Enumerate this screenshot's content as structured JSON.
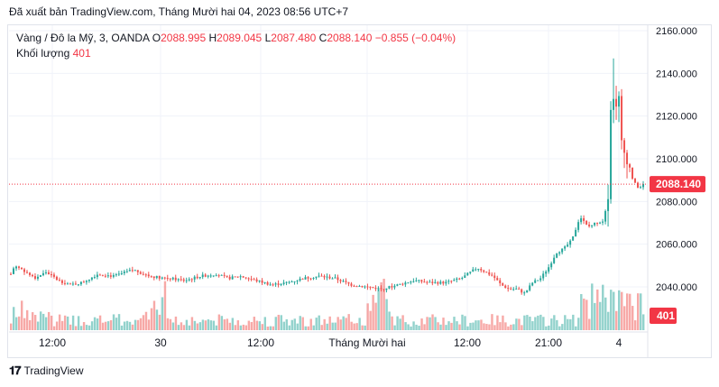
{
  "header": {
    "published_text": "Đã xuất bản TradingView.com, Tháng Mười hai 04, 2023 08:56 UTC+7"
  },
  "legend": {
    "symbol": "Vàng / Đô la Mỹ, 3, OANDA",
    "open_label": "O",
    "open": "2088.995",
    "high_label": "H",
    "high": "2089.045",
    "low_label": "L",
    "low": "2087.480",
    "close_label": "C",
    "close": "2088.140",
    "change": "−0.855 (−0.04%)",
    "volume_label": "Khối lượng",
    "volume_value": "401"
  },
  "footer": {
    "brand": "TradingView"
  },
  "colors": {
    "up": "#26a69a",
    "down": "#ef5350",
    "price_tag": "#f23645",
    "grid": "#f0f3fa"
  },
  "chart_data": {
    "type": "candlestick",
    "symbol": "XAU/USD",
    "timeframe": "3",
    "y_ticks": [
      "2160.000",
      "2140.000",
      "2120.000",
      "2100.000",
      "2080.000",
      "2060.000",
      "2040.000"
    ],
    "y_tick_values": [
      2160,
      2140,
      2120,
      2100,
      2080,
      2060,
      2040
    ],
    "ylim": [
      2029,
      2162
    ],
    "x_ticks": [
      "12:00",
      "30",
      "12:00",
      "Tháng Mười hai",
      "12:00",
      "21:00",
      "4"
    ],
    "last_price_label": "2088.140",
    "last_price": 2088.14,
    "volume_label": "401",
    "price_path": [
      [
        0,
        2046
      ],
      [
        0.5,
        2050
      ],
      [
        1.5,
        2048
      ],
      [
        3,
        2044
      ],
      [
        4.5,
        2047
      ],
      [
        6,
        2043
      ],
      [
        7.5,
        2041
      ],
      [
        9,
        2042
      ],
      [
        11,
        2046
      ],
      [
        13,
        2045
      ],
      [
        15.5,
        2048
      ],
      [
        17.5,
        2045
      ],
      [
        20,
        2044
      ],
      [
        22,
        2043
      ],
      [
        24,
        2045
      ],
      [
        26,
        2046
      ],
      [
        27.5,
        2044
      ],
      [
        29,
        2045
      ],
      [
        31,
        2043
      ],
      [
        33,
        2041
      ],
      [
        35,
        2042
      ],
      [
        37,
        2044
      ],
      [
        39,
        2045
      ],
      [
        41,
        2044
      ],
      [
        43,
        2041
      ],
      [
        45,
        2040
      ],
      [
        47,
        2039
      ],
      [
        49,
        2041
      ],
      [
        51,
        2043
      ],
      [
        53,
        2042
      ],
      [
        55,
        2042
      ],
      [
        57,
        2044
      ],
      [
        59,
        2049
      ],
      [
        60,
        2047
      ],
      [
        61,
        2045
      ],
      [
        62,
        2041
      ],
      [
        63,
        2039
      ],
      [
        64,
        2039
      ],
      [
        65,
        2037
      ],
      [
        66,
        2042
      ],
      [
        67,
        2044
      ],
      [
        68,
        2049
      ],
      [
        69,
        2056
      ],
      [
        70,
        2058
      ],
      [
        71,
        2062
      ],
      [
        72,
        2073
      ],
      [
        73,
        2068
      ],
      [
        74,
        2070
      ],
      [
        75,
        2071
      ],
      [
        75.6,
        2085
      ],
      [
        76,
        2138
      ],
      [
        76.4,
        2120
      ],
      [
        76.8,
        2135
      ],
      [
        77.3,
        2105
      ],
      [
        78,
        2100
      ],
      [
        78.5,
        2092
      ],
      [
        79,
        2088
      ],
      [
        79.5,
        2086
      ],
      [
        80,
        2088.14
      ]
    ],
    "highlight_high": 2147
  }
}
